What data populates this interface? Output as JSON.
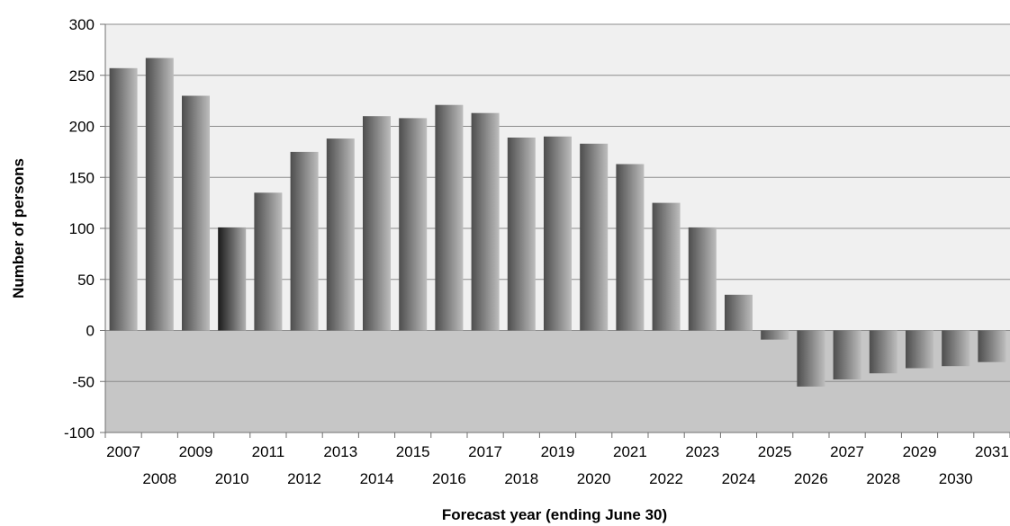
{
  "chart_data": {
    "type": "bar",
    "title": "",
    "xlabel": "Forecast year (ending June 30)",
    "ylabel": "Number of persons",
    "ylim": [
      -100,
      300
    ],
    "yticks": [
      -100,
      -50,
      0,
      50,
      100,
      150,
      200,
      250,
      300
    ],
    "ytick_labels": [
      "-100",
      "-50",
      "0",
      "50",
      "100",
      "150",
      "200",
      "250",
      "300"
    ],
    "grid": true,
    "legend": "none",
    "categories": [
      "2007",
      "2008",
      "2009",
      "2010",
      "2011",
      "2012",
      "2013",
      "2014",
      "2015",
      "2016",
      "2017",
      "2018",
      "2019",
      "2020",
      "2021",
      "2022",
      "2023",
      "2024",
      "2025",
      "2026",
      "2027",
      "2028",
      "2029",
      "2030",
      "2031"
    ],
    "values": [
      257,
      267,
      230,
      101,
      135,
      175,
      188,
      210,
      208,
      221,
      213,
      189,
      190,
      183,
      163,
      125,
      101,
      35,
      -9,
      -55,
      -48,
      -42,
      -37,
      -35,
      -31
    ]
  }
}
